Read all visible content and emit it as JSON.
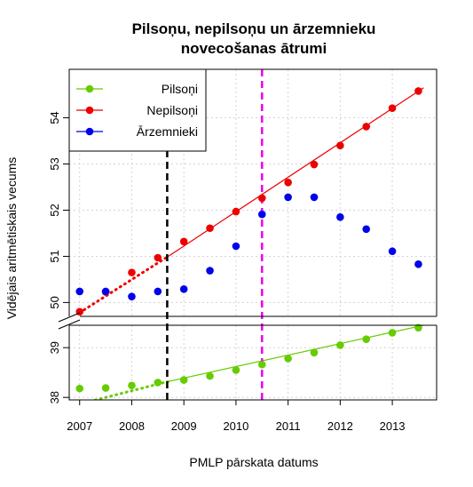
{
  "chart_data": {
    "type": "scatter",
    "title": [
      "Pilsoņu, nepilsoņu un ārzemnieku",
      "novecošanas ātrumi"
    ],
    "xlabel": "PMLP pārskata datums",
    "ylabel": "Vidējais aritmētiskais vecums",
    "x_ticks": [
      "2007",
      "2008",
      "2009",
      "2010",
      "2011",
      "2012",
      "2013"
    ],
    "xlim": [
      2006.8,
      2013.85
    ],
    "upper_panel": {
      "ylim": [
        49.7,
        55.05
      ],
      "y_ticks": [
        "50",
        "51",
        "52",
        "53",
        "54"
      ]
    },
    "lower_panel": {
      "ylim": [
        37.95,
        39.45
      ],
      "y_ticks": [
        "38",
        "39"
      ]
    },
    "grid": true,
    "legend_position": "top-left",
    "series": [
      {
        "name": "Pilsoņi",
        "color": "#66cc00",
        "panel": "lower",
        "x": [
          2007.0,
          2007.5,
          2008.0,
          2008.5,
          2009.0,
          2009.5,
          2010.0,
          2010.5,
          2011.0,
          2011.5,
          2012.0,
          2012.5,
          2013.0,
          2013.5
        ],
        "y": [
          38.18,
          38.19,
          38.24,
          38.3,
          38.35,
          38.43,
          38.55,
          38.66,
          38.78,
          38.9,
          39.05,
          39.17,
          39.3,
          39.4
        ],
        "trend_dotted": {
          "x": [
            2007.2,
            2008.7
          ],
          "y": [
            37.92,
            38.32
          ]
        },
        "trend_solid": {
          "x": [
            2008.7,
            2013.6
          ],
          "y": [
            38.32,
            39.45
          ]
        }
      },
      {
        "name": "Nepilsoņi",
        "color": "#ee0000",
        "panel": "upper",
        "x": [
          2007.0,
          2007.5,
          2008.0,
          2008.5,
          2009.0,
          2009.5,
          2010.0,
          2010.5,
          2011.0,
          2011.5,
          2012.0,
          2012.5,
          2013.0,
          2013.5
        ],
        "y": [
          49.8,
          50.23,
          50.65,
          50.97,
          51.32,
          51.61,
          51.97,
          52.26,
          52.6,
          52.99,
          53.4,
          53.81,
          54.21,
          54.58
        ],
        "trend_dotted": {
          "x": [
            2007.0,
            2008.7
          ],
          "y": [
            49.78,
            51.0
          ]
        },
        "trend_solid": {
          "x": [
            2008.7,
            2013.6
          ],
          "y": [
            51.0,
            54.65
          ]
        }
      },
      {
        "name": "Ārzemnieki",
        "color": "#0000ee",
        "panel": "upper",
        "x": [
          2007.0,
          2007.5,
          2008.0,
          2008.5,
          2009.0,
          2009.5,
          2010.0,
          2010.5,
          2011.0,
          2011.5,
          2012.0,
          2012.5,
          2013.0,
          2013.5
        ],
        "y": [
          50.24,
          50.24,
          50.13,
          50.24,
          50.29,
          50.69,
          51.22,
          51.91,
          52.28,
          52.28,
          51.85,
          51.59,
          51.11,
          50.83
        ]
      }
    ],
    "vlines": [
      {
        "x": 2008.68,
        "color": "#000000",
        "dash": "dashed"
      },
      {
        "x": 2010.5,
        "color": "#ee00ee",
        "dash": "dashed"
      }
    ]
  }
}
